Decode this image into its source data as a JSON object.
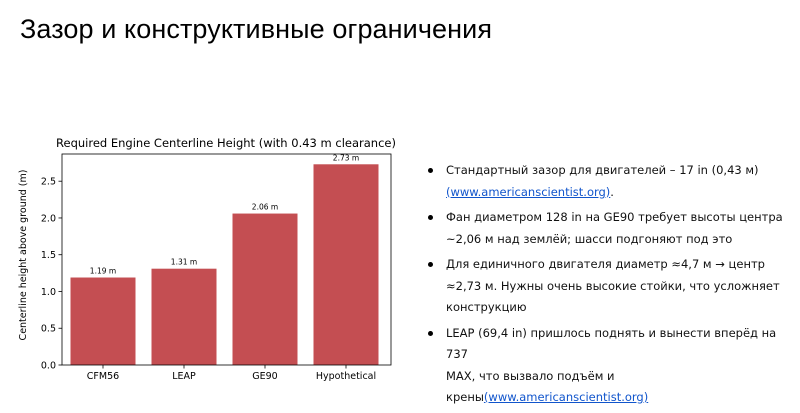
{
  "slide": {
    "title": "Зазор и конструктивные ограничения"
  },
  "chart_data": {
    "type": "bar",
    "title": "Required Engine Centerline Height (with 0.43 m clearance)",
    "xlabel": "",
    "ylabel": "Centerline height above ground (m)",
    "categories": [
      "CFM56",
      "LEAP",
      "GE90",
      "Hypothetical"
    ],
    "values": [
      1.19,
      1.31,
      2.06,
      2.73
    ],
    "data_labels": [
      "1.19 m",
      "1.31 m",
      "2.06 m",
      "2.73 m"
    ],
    "ylim": [
      0,
      2.87
    ],
    "yticks": [
      "0.0",
      "0.5",
      "1.0",
      "1.5",
      "2.0",
      "2.5"
    ],
    "grid": false,
    "bar_color": "#c44e52"
  },
  "bullets": [
    {
      "lines": [
        "Стандартный зазор для двигателей – 17 in (0,43 м)"
      ],
      "link": "(www.americanscientist.org)",
      "suffix": "."
    },
    {
      "lines": [
        "Фан диаметром 128 in на GE90 требует высоты центра",
        "~2,06 м над землёй; шасси подгоняют под это"
      ]
    },
    {
      "lines": [
        "Для единичного двигателя диаметр ≈4,7 м → центр",
        "≈2,73 м. Нужны очень высокие стойки, что усложняет",
        "конструкцию"
      ]
    },
    {
      "lines": [
        "LEAP (69,4 in) пришлось поднять и вынести вперёд на 737",
        "MAX, что вызвало подъём и",
        "крены"
      ],
      "link": "(www.americanscientist.org)"
    }
  ],
  "colors": {
    "link": "#1155cc",
    "bar": "#c44e52"
  }
}
